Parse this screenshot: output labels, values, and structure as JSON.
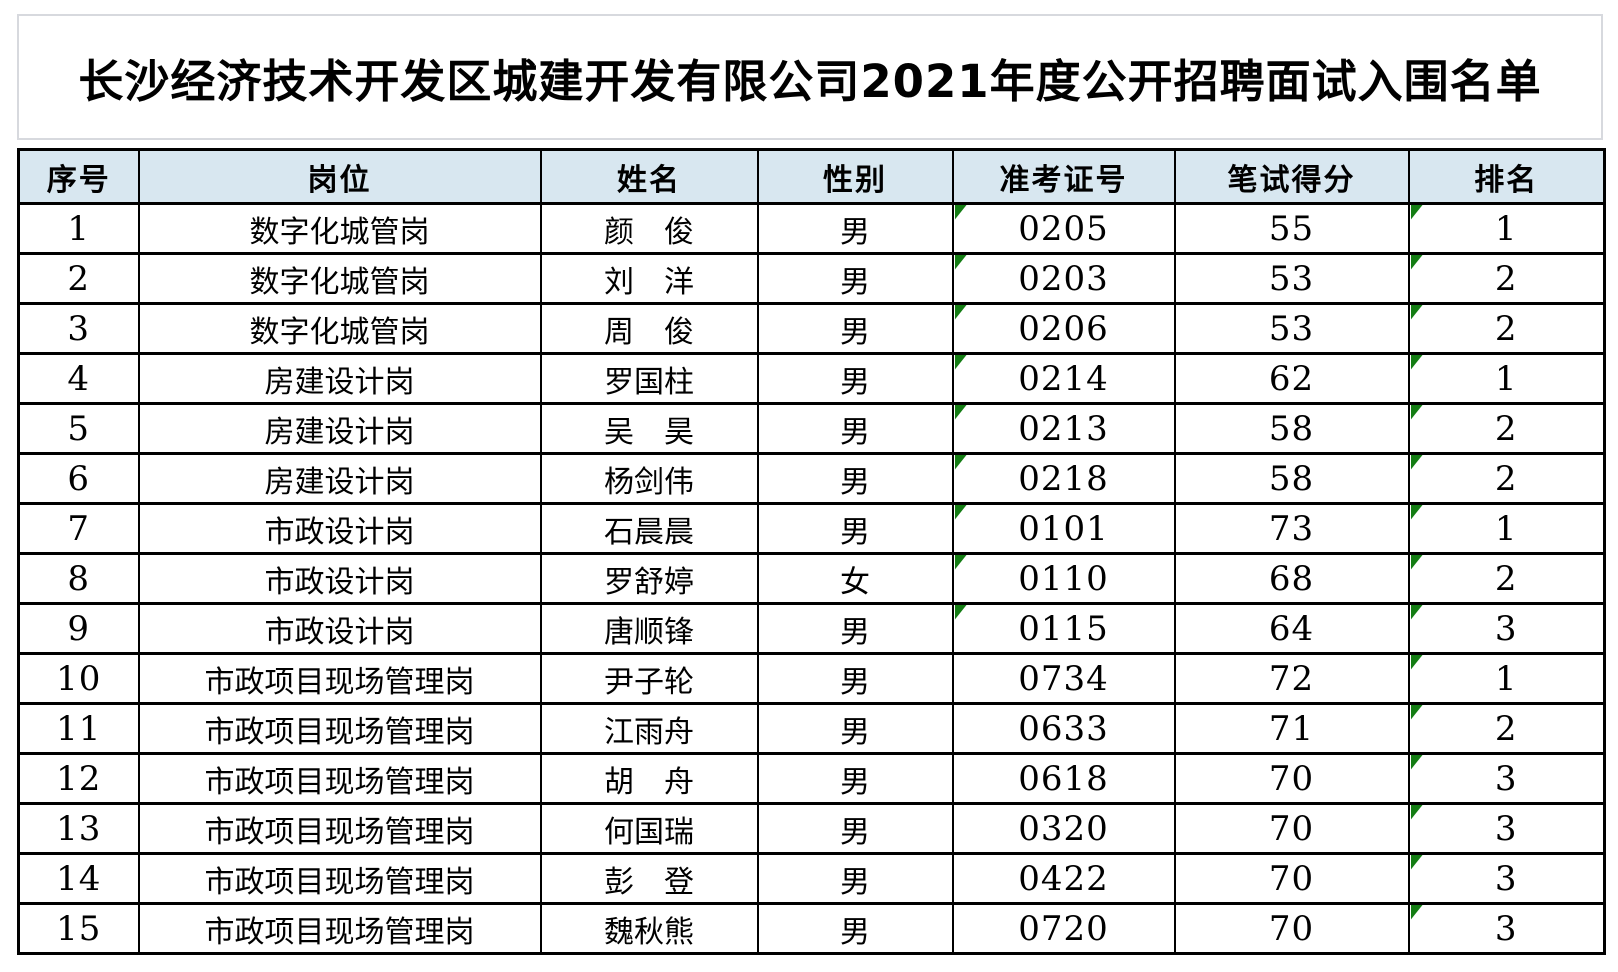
{
  "title": {
    "text": "长沙经济技术开发区城建开发有限公司2021年度公开招聘面试入围名单"
  },
  "table": {
    "header_bg_color": "#d8e7f0",
    "border_color": "#000000",
    "error_marker_color": "#147d14",
    "error_marker_icon": "green-corner-triangle",
    "columns": [
      {
        "key": "index",
        "label": "序号",
        "numeric": true
      },
      {
        "key": "position",
        "label": "岗位",
        "numeric": false
      },
      {
        "key": "name",
        "label": "姓名",
        "numeric": false
      },
      {
        "key": "gender",
        "label": "性别",
        "numeric": false
      },
      {
        "key": "ticket",
        "label": "准考证号",
        "numeric": true
      },
      {
        "key": "score",
        "label": "笔试得分",
        "numeric": true
      },
      {
        "key": "rank",
        "label": "排名",
        "numeric": true
      }
    ],
    "rows": [
      {
        "index": "1",
        "position": "数字化城管岗",
        "name": "颜　俊",
        "gender": "男",
        "ticket": "0205",
        "score": "55",
        "rank": "1",
        "ticket_marker": true,
        "rank_marker": true
      },
      {
        "index": "2",
        "position": "数字化城管岗",
        "name": "刘　洋",
        "gender": "男",
        "ticket": "0203",
        "score": "53",
        "rank": "2",
        "ticket_marker": true,
        "rank_marker": true
      },
      {
        "index": "3",
        "position": "数字化城管岗",
        "name": "周　俊",
        "gender": "男",
        "ticket": "0206",
        "score": "53",
        "rank": "2",
        "ticket_marker": true,
        "rank_marker": true
      },
      {
        "index": "4",
        "position": "房建设计岗",
        "name": "罗国柱",
        "gender": "男",
        "ticket": "0214",
        "score": "62",
        "rank": "1",
        "ticket_marker": true,
        "rank_marker": true
      },
      {
        "index": "5",
        "position": "房建设计岗",
        "name": "吴　昊",
        "gender": "男",
        "ticket": "0213",
        "score": "58",
        "rank": "2",
        "ticket_marker": true,
        "rank_marker": true
      },
      {
        "index": "6",
        "position": "房建设计岗",
        "name": "杨剑伟",
        "gender": "男",
        "ticket": "0218",
        "score": "58",
        "rank": "2",
        "ticket_marker": true,
        "rank_marker": true
      },
      {
        "index": "7",
        "position": "市政设计岗",
        "name": "石晨晨",
        "gender": "男",
        "ticket": "0101",
        "score": "73",
        "rank": "1",
        "ticket_marker": true,
        "rank_marker": true
      },
      {
        "index": "8",
        "position": "市政设计岗",
        "name": "罗舒婷",
        "gender": "女",
        "ticket": "0110",
        "score": "68",
        "rank": "2",
        "ticket_marker": true,
        "rank_marker": true
      },
      {
        "index": "9",
        "position": "市政设计岗",
        "name": "唐顺锋",
        "gender": "男",
        "ticket": "0115",
        "score": "64",
        "rank": "3",
        "ticket_marker": true,
        "rank_marker": true
      },
      {
        "index": "10",
        "position": "市政项目现场管理岗",
        "name": "尹子轮",
        "gender": "男",
        "ticket": "0734",
        "score": "72",
        "rank": "1",
        "ticket_marker": false,
        "rank_marker": true
      },
      {
        "index": "11",
        "position": "市政项目现场管理岗",
        "name": "江雨舟",
        "gender": "男",
        "ticket": "0633",
        "score": "71",
        "rank": "2",
        "ticket_marker": false,
        "rank_marker": true
      },
      {
        "index": "12",
        "position": "市政项目现场管理岗",
        "name": "胡　舟",
        "gender": "男",
        "ticket": "0618",
        "score": "70",
        "rank": "3",
        "ticket_marker": false,
        "rank_marker": true
      },
      {
        "index": "13",
        "position": "市政项目现场管理岗",
        "name": "何国瑞",
        "gender": "男",
        "ticket": "0320",
        "score": "70",
        "rank": "3",
        "ticket_marker": false,
        "rank_marker": true
      },
      {
        "index": "14",
        "position": "市政项目现场管理岗",
        "name": "彭　登",
        "gender": "男",
        "ticket": "0422",
        "score": "70",
        "rank": "3",
        "ticket_marker": false,
        "rank_marker": true
      },
      {
        "index": "15",
        "position": "市政项目现场管理岗",
        "name": "魏秋熊",
        "gender": "男",
        "ticket": "0720",
        "score": "70",
        "rank": "3",
        "ticket_marker": false,
        "rank_marker": true
      }
    ]
  }
}
